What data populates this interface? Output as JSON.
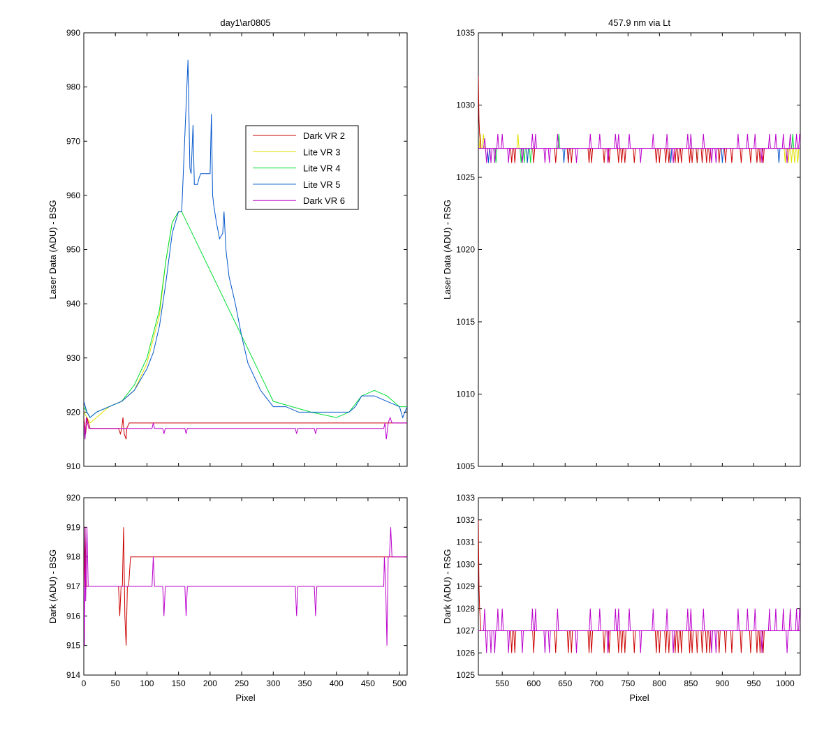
{
  "series_styles": [
    {
      "name": "Dark VR 2",
      "color": "#cc0000"
    },
    {
      "name": "Lite VR 3",
      "color": "#e0e000"
    },
    {
      "name": "Lite VR 4",
      "color": "#00dd33"
    },
    {
      "name": "Lite VR 5",
      "color": "#0055cc"
    },
    {
      "name": "Dark VR 6",
      "color": "#bb00cc"
    }
  ],
  "chart_data": [
    {
      "id": "top-left",
      "type": "line",
      "title": "day1\\ar0805",
      "xlabel": "",
      "ylabel": "Laser Data (ADU) - BSG",
      "xlim": [
        0,
        512
      ],
      "ylim": [
        910,
        990
      ],
      "xticks": [
        0,
        50,
        100,
        150,
        200,
        250,
        300,
        350,
        400,
        450,
        500
      ],
      "xticklabels": [],
      "yticks": [
        910,
        920,
        930,
        940,
        950,
        960,
        970,
        980,
        990
      ],
      "legend": {
        "placement": "inside-upper-right",
        "entries": [
          "Dark VR 2",
          "Lite VR 3",
          "Lite VR 4",
          "Lite VR 5",
          "Dark VR 6"
        ]
      },
      "series": [
        {
          "name": "Lite VR 3",
          "x": [
            0,
            10,
            20,
            40,
            60,
            80,
            100,
            120,
            130,
            140,
            150,
            155
          ],
          "y": [
            920,
            918,
            919,
            921,
            922,
            924,
            929,
            938,
            948,
            955,
            957,
            957
          ]
        },
        {
          "name": "Lite VR 4",
          "x": [
            0,
            10,
            20,
            40,
            60,
            80,
            100,
            120,
            130,
            140,
            150,
            155,
            300,
            330,
            360,
            400,
            420,
            440,
            460,
            480,
            500,
            512
          ],
          "y": [
            921,
            919,
            920,
            921,
            922,
            925,
            930,
            939,
            948,
            955,
            957,
            957,
            922,
            921,
            920,
            919,
            920,
            923,
            924,
            923,
            921,
            921
          ]
        },
        {
          "name": "Lite VR 5",
          "x": [
            0,
            5,
            10,
            20,
            40,
            60,
            80,
            100,
            110,
            120,
            130,
            140,
            150,
            155,
            165,
            168,
            170,
            173,
            175,
            178,
            180,
            182,
            185,
            200,
            202,
            204,
            206,
            210,
            215,
            220,
            222,
            225,
            230,
            240,
            250,
            260,
            280,
            300,
            320,
            340,
            360,
            380,
            400,
            420,
            430,
            440,
            460,
            480,
            500,
            505,
            512
          ],
          "y": [
            922,
            920,
            919,
            920,
            921,
            922,
            924,
            928,
            931,
            936,
            944,
            953,
            957,
            957,
            985,
            965,
            964,
            973,
            962,
            962,
            962,
            963,
            964,
            964,
            975,
            960,
            958,
            955,
            952,
            953,
            957,
            950,
            945,
            940,
            934,
            929,
            924,
            921,
            921,
            920,
            920,
            920,
            920,
            920,
            921,
            923,
            923,
            922,
            921,
            919,
            921
          ]
        },
        {
          "name": "Dark VR 2",
          "x": [
            0,
            3,
            5,
            10,
            55,
            58,
            60,
            62,
            64,
            67,
            68,
            72,
            512
          ],
          "y": [
            919,
            916,
            919,
            917,
            917,
            916,
            917,
            919,
            916,
            915,
            917,
            918,
            918
          ]
        },
        {
          "name": "Dark VR 6",
          "x": [
            0,
            2,
            4,
            8,
            108,
            110,
            112,
            125,
            127,
            129,
            160,
            162,
            164,
            335,
            337,
            339,
            365,
            367,
            369,
            475,
            477,
            479,
            482,
            485,
            488,
            512
          ],
          "y": [
            918,
            915,
            919,
            917,
            917,
            918,
            917,
            917,
            916,
            917,
            917,
            916,
            917,
            917,
            916,
            917,
            917,
            916,
            917,
            917,
            918,
            915,
            918,
            919,
            918,
            918
          ]
        }
      ]
    },
    {
      "id": "bottom-left",
      "type": "line",
      "title": "",
      "xlabel": "Pixel",
      "ylabel": "Dark (ADU) - BSG",
      "xlim": [
        0,
        512
      ],
      "ylim": [
        914,
        920
      ],
      "xticks": [
        0,
        50,
        100,
        150,
        200,
        250,
        300,
        350,
        400,
        450,
        500
      ],
      "xticklabels": [
        "0",
        "50",
        "100",
        "150",
        "200",
        "250",
        "300",
        "350",
        "400",
        "450",
        "500"
      ],
      "yticks": [
        914,
        915,
        916,
        917,
        918,
        919,
        920
      ],
      "series": [
        {
          "name": "Dark VR 2",
          "x": [
            0,
            2,
            4,
            6,
            55,
            57,
            59,
            61,
            63,
            65,
            67,
            69,
            71,
            74,
            512
          ],
          "y": [
            917,
            919,
            917,
            917,
            917,
            916,
            917,
            917,
            919,
            916,
            915,
            917,
            917,
            918,
            918
          ]
        },
        {
          "name": "Dark VR 6",
          "x": [
            0,
            1,
            2,
            3,
            5,
            7,
            108,
            110,
            112,
            125,
            127,
            129,
            160,
            162,
            164,
            335,
            337,
            339,
            365,
            367,
            369,
            475,
            476,
            478,
            480,
            482,
            484,
            486,
            488,
            490,
            512
          ],
          "y": [
            917,
            915,
            919,
            916.5,
            919,
            917,
            917,
            918,
            917,
            917,
            916,
            917,
            917,
            916,
            917,
            917,
            916,
            917,
            917,
            916,
            917,
            917,
            918,
            917,
            915,
            918,
            918,
            919,
            918,
            918,
            918
          ]
        }
      ]
    },
    {
      "id": "top-right",
      "type": "line",
      "title": "457.9 nm via Lt",
      "xlabel": "",
      "ylabel": "Laser Data (ADU) - RSG",
      "xlim": [
        512,
        1024
      ],
      "ylim": [
        1005,
        1035
      ],
      "xticks": [
        550,
        600,
        650,
        700,
        750,
        800,
        850,
        900,
        950,
        1000
      ],
      "xticklabels": [],
      "yticks": [
        1005,
        1010,
        1015,
        1020,
        1025,
        1030,
        1035
      ],
      "baseline": 1027,
      "start": {
        "x": [
          512,
          513,
          514,
          516
        ],
        "y": [
          1032,
          1029,
          1028,
          1027
        ]
      },
      "dips": [
        {
          "name": "Lite VR 3",
          "x": [
            515,
            520,
            575,
            590,
            1000,
            1005,
            1010,
            1015,
            1020
          ],
          "y": [
            1028,
            1028,
            1028,
            1026,
            1026,
            1026,
            1026,
            1026,
            1026
          ]
        },
        {
          "name": "Lite VR 4",
          "x": [
            540,
            580,
            585,
            595,
            640,
            860,
            1012
          ],
          "y": [
            1026,
            1026,
            1026,
            1026,
            1028,
            1026,
            1028
          ]
        },
        {
          "name": "Lite VR 5",
          "x": [
            528,
            590,
            648,
            655,
            818,
            900,
            990
          ],
          "y": [
            1026,
            1026,
            1026,
            1026,
            1026,
            1026,
            1026
          ]
        },
        {
          "name": "Dark VR 2",
          "x": [
            565,
            570,
            600,
            635,
            655,
            660,
            688,
            692,
            712,
            720,
            735,
            740,
            745,
            760,
            795,
            800,
            810,
            815,
            825,
            830,
            835,
            848,
            852,
            860,
            868,
            875,
            880,
            895,
            905,
            915,
            930,
            945,
            955,
            960,
            965
          ],
          "y": [
            1026,
            1026,
            1026,
            1026,
            1026,
            1026,
            1026,
            1026,
            1026,
            1026,
            1026,
            1026,
            1026,
            1026,
            1026,
            1026,
            1026,
            1026,
            1026,
            1026,
            1026,
            1026,
            1026,
            1026,
            1026,
            1026,
            1026,
            1026,
            1026,
            1026,
            1026,
            1026,
            1026,
            1026,
            1026
          ]
        },
        {
          "name": "Dark VR 6",
          "x": [
            522,
            525,
            532,
            538,
            543,
            550,
            560,
            582,
            598,
            603,
            618,
            625,
            638,
            668,
            690,
            705,
            718,
            730,
            735,
            752,
            770,
            790,
            812,
            822,
            845,
            850,
            870,
            883,
            890,
            925,
            940,
            952,
            963,
            975,
            985,
            997,
            1003,
            1008,
            1018,
            1023
          ],
          "y": [
            1027.7,
            1026,
            1026,
            1026,
            1028,
            1028,
            1026,
            1026,
            1028,
            1028,
            1026,
            1026,
            1028,
            1026,
            1028,
            1028,
            1026,
            1028,
            1028,
            1028,
            1026,
            1028,
            1028,
            1026,
            1028,
            1028,
            1028,
            1026,
            1026,
            1028,
            1028,
            1028,
            1026,
            1028,
            1028,
            1028,
            1026,
            1028,
            1028,
            1028
          ]
        }
      ]
    },
    {
      "id": "bottom-right",
      "type": "line",
      "title": "",
      "xlabel": "Pixel",
      "ylabel": "Dark (ADU) - RSG",
      "xlim": [
        512,
        1024
      ],
      "ylim": [
        1025,
        1033
      ],
      "xticks": [
        550,
        600,
        650,
        700,
        750,
        800,
        850,
        900,
        950,
        1000
      ],
      "xticklabels": [
        "550",
        "600",
        "650",
        "700",
        "750",
        "800",
        "850",
        "900",
        "950",
        "1000"
      ],
      "yticks": [
        1025,
        1026,
        1027,
        1028,
        1029,
        1030,
        1031,
        1032,
        1033
      ],
      "baseline": 1027,
      "start": {
        "x": [
          512,
          513,
          514,
          516
        ],
        "y": [
          1032,
          1029,
          1028,
          1027
        ]
      },
      "dips": [
        {
          "name": "Dark VR 2",
          "x": [
            565,
            570,
            600,
            635,
            655,
            660,
            688,
            692,
            712,
            720,
            735,
            740,
            745,
            760,
            795,
            800,
            810,
            815,
            825,
            830,
            835,
            848,
            852,
            860,
            868,
            875,
            880,
            895,
            905,
            915,
            930,
            945,
            955,
            960,
            965
          ],
          "y": [
            1026,
            1026,
            1026,
            1026,
            1026,
            1026,
            1026,
            1026,
            1026,
            1026,
            1026,
            1026,
            1026,
            1026,
            1026,
            1026,
            1026,
            1026,
            1026,
            1026,
            1026,
            1026,
            1026,
            1026,
            1026,
            1026,
            1026,
            1026,
            1026,
            1026,
            1026,
            1026,
            1026,
            1026,
            1026
          ]
        },
        {
          "name": "Dark VR 6",
          "x": [
            522,
            525,
            532,
            538,
            543,
            550,
            560,
            582,
            598,
            603,
            618,
            625,
            638,
            668,
            690,
            705,
            718,
            730,
            735,
            752,
            770,
            790,
            812,
            822,
            845,
            850,
            870,
            883,
            890,
            925,
            940,
            952,
            963,
            975,
            985,
            997,
            1003,
            1008,
            1018,
            1023
          ],
          "y": [
            1028,
            1026,
            1026,
            1026,
            1028,
            1028,
            1026,
            1026,
            1028,
            1028,
            1026,
            1026,
            1028,
            1026,
            1028,
            1028,
            1026,
            1028,
            1028,
            1028,
            1026,
            1028,
            1028,
            1026,
            1028,
            1028,
            1028,
            1026,
            1026,
            1028,
            1028,
            1028,
            1026,
            1028,
            1028,
            1028,
            1026,
            1028,
            1028,
            1028
          ]
        }
      ]
    }
  ]
}
